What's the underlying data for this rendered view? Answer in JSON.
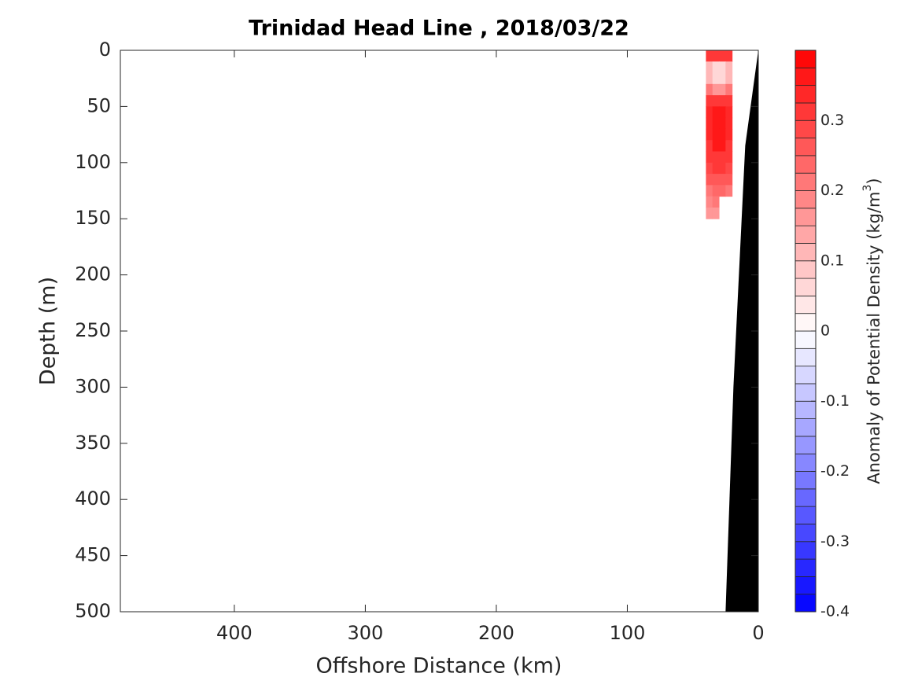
{
  "chart_data": {
    "type": "contour",
    "title": "Trinidad Head Line , 2018/03/22",
    "xlabel": "Offshore Distance (km)",
    "ylabel": "Depth (m)",
    "colorbar_label": [
      "Anomaly of Potential Density (kg/m",
      "3",
      ")"
    ],
    "xlim": [
      487,
      0
    ],
    "xticks": [
      400,
      300,
      200,
      100,
      0
    ],
    "ylim": [
      0,
      500
    ],
    "yticks": [
      0,
      50,
      100,
      150,
      200,
      250,
      300,
      350,
      400,
      450,
      500
    ],
    "clim": [
      -0.4,
      0.4
    ],
    "clevel_step": 0.025,
    "cticks": [
      -0.4,
      -0.3,
      -0.2,
      -0.1,
      0,
      0.1,
      0.2,
      0.3
    ],
    "x_edges": [
      40,
      35,
      30,
      25,
      20
    ],
    "depth_edges": [
      0,
      10,
      20,
      30,
      40,
      50,
      60,
      70,
      80,
      90,
      100,
      110,
      120,
      130,
      140,
      150
    ],
    "z": [
      [
        0.3,
        0.3,
        0.3,
        0.3
      ],
      [
        0.1,
        0.05,
        0.05,
        0.1
      ],
      [
        0.1,
        0.05,
        0.05,
        0.1
      ],
      [
        0.2,
        0.15,
        0.15,
        0.2
      ],
      [
        0.3,
        0.3,
        0.3,
        0.3
      ],
      [
        0.33,
        0.35,
        0.35,
        0.33
      ],
      [
        0.33,
        0.36,
        0.36,
        0.33
      ],
      [
        0.33,
        0.36,
        0.36,
        0.33
      ],
      [
        0.32,
        0.35,
        0.35,
        0.32
      ],
      [
        0.3,
        0.32,
        0.32,
        0.3
      ],
      [
        0.28,
        0.3,
        0.3,
        0.28
      ],
      [
        0.25,
        0.27,
        0.27,
        0.25
      ],
      [
        0.22,
        0.24,
        0.24,
        0.22
      ],
      [
        0.18,
        0.2,
        null,
        null
      ],
      [
        0.15,
        0.17,
        null,
        null
      ]
    ],
    "bottom": {
      "x": [
        0,
        10,
        19,
        25
      ],
      "depth": [
        0,
        85,
        300,
        500
      ],
      "color": "#000000"
    }
  }
}
